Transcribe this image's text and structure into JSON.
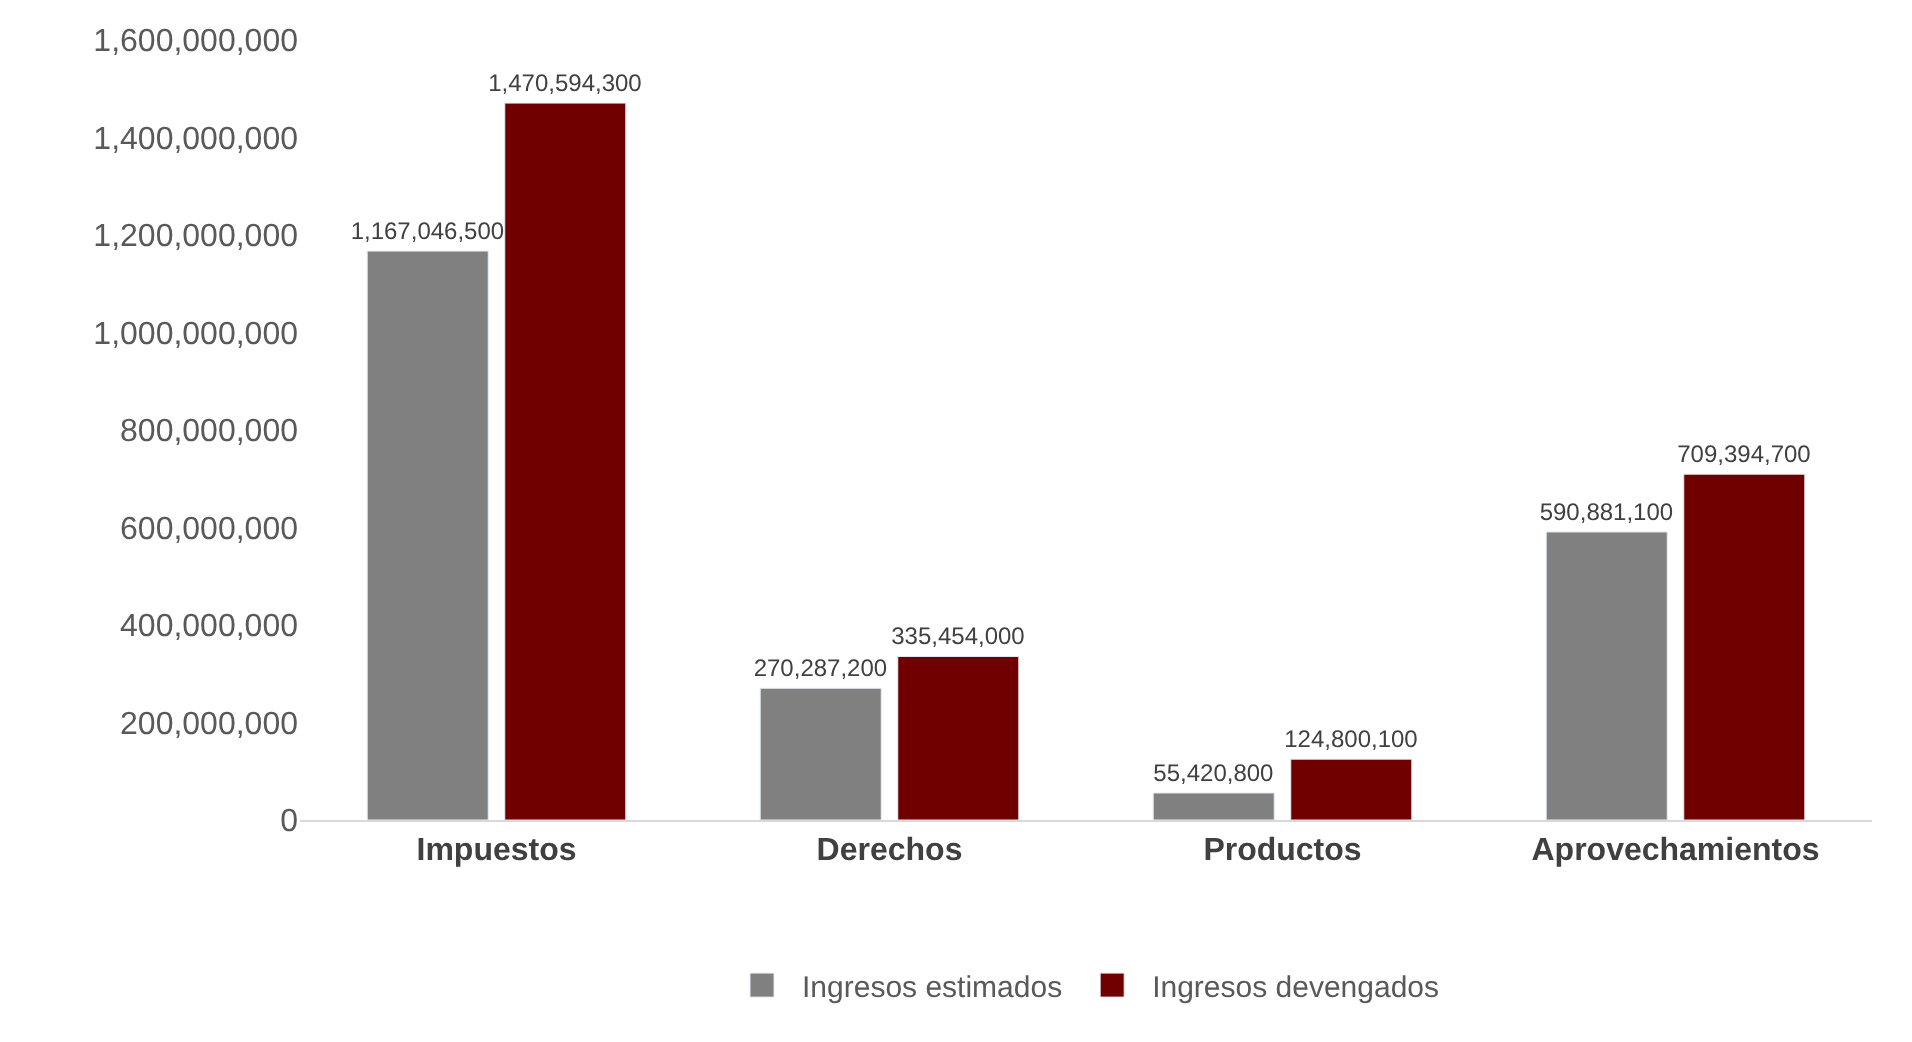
{
  "chart_data": {
    "type": "bar",
    "categories": [
      "Impuestos",
      "Derechos",
      "Productos",
      "Aprovechamientos"
    ],
    "series": [
      {
        "name": "Ingresos estimados",
        "color": "#808080",
        "values": [
          1167046500,
          270287200,
          55420800,
          590881100
        ],
        "value_labels": [
          "1,167,046,500",
          "270,287,200",
          "55,420,800",
          "590,881,100"
        ]
      },
      {
        "name": "Ingresos devengados",
        "color": "#700000",
        "values": [
          1470594300,
          335454000,
          124800100,
          709394700
        ],
        "value_labels": [
          "1,470,594,300",
          "335,454,000",
          "124,800,100",
          "709,394,700"
        ]
      }
    ],
    "ylim": [
      0,
      1600000000
    ],
    "yticks": [
      {
        "value": 0,
        "label": "0"
      },
      {
        "value": 200000000,
        "label": "200,000,000"
      },
      {
        "value": 400000000,
        "label": "400,000,000"
      },
      {
        "value": 600000000,
        "label": "600,000,000"
      },
      {
        "value": 800000000,
        "label": "800,000,000"
      },
      {
        "value": 1000000000,
        "label": "1,000,000,000"
      },
      {
        "value": 1200000000,
        "label": "1,200,000,000"
      },
      {
        "value": 1400000000,
        "label": "1,400,000,000"
      },
      {
        "value": 1600000000,
        "label": "1,600,000,000"
      }
    ],
    "grid": false,
    "legend": "bottom"
  }
}
